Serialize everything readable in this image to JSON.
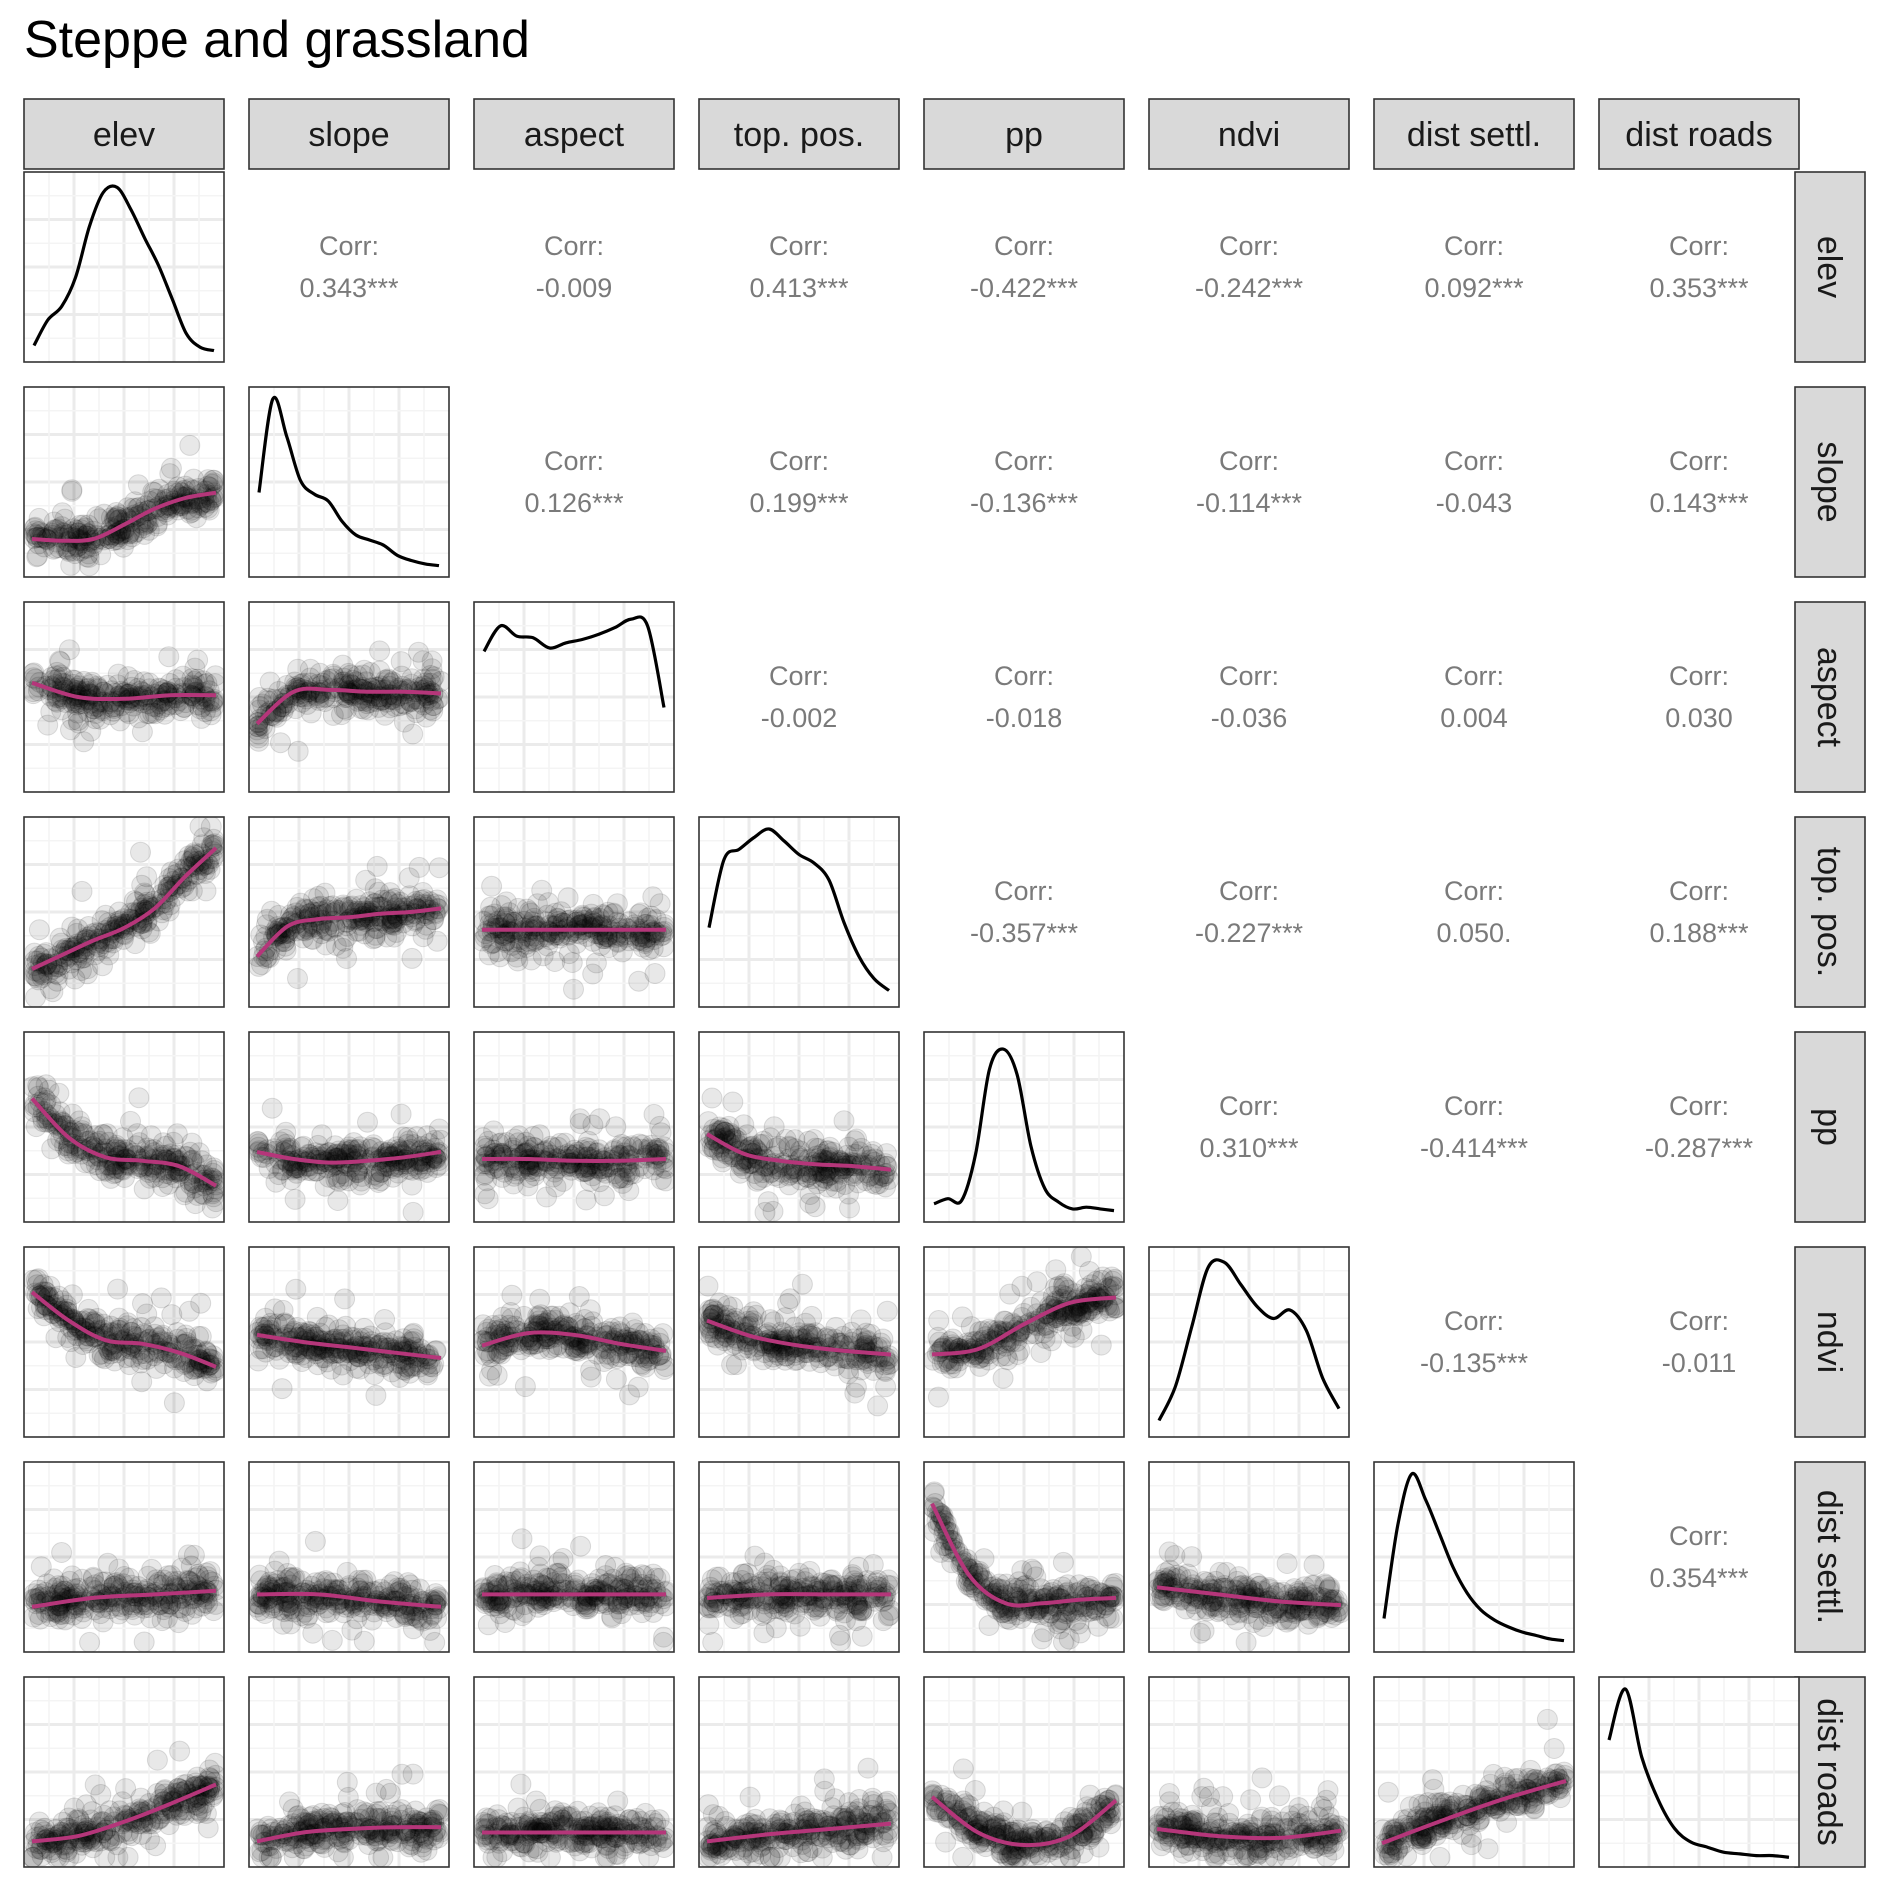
{
  "chart_data": {
    "type": "scatter",
    "title": "Steppe and grassland",
    "variables": [
      "elev",
      "slope",
      "aspect",
      "top. pos.",
      "pp",
      "ndvi",
      "dist settl.",
      "dist roads"
    ],
    "corr_prefix": "Corr:",
    "correlations": [
      {
        "row": "elev",
        "col": "slope",
        "value": "0.343***"
      },
      {
        "row": "elev",
        "col": "aspect",
        "value": "-0.009"
      },
      {
        "row": "elev",
        "col": "top. pos.",
        "value": "0.413***"
      },
      {
        "row": "elev",
        "col": "pp",
        "value": "-0.422***"
      },
      {
        "row": "elev",
        "col": "ndvi",
        "value": "-0.242***"
      },
      {
        "row": "elev",
        "col": "dist settl.",
        "value": "0.092***"
      },
      {
        "row": "elev",
        "col": "dist roads",
        "value": "0.353***"
      },
      {
        "row": "slope",
        "col": "aspect",
        "value": "0.126***"
      },
      {
        "row": "slope",
        "col": "top. pos.",
        "value": "0.199***"
      },
      {
        "row": "slope",
        "col": "pp",
        "value": "-0.136***"
      },
      {
        "row": "slope",
        "col": "ndvi",
        "value": "-0.114***"
      },
      {
        "row": "slope",
        "col": "dist settl.",
        "value": "-0.043"
      },
      {
        "row": "slope",
        "col": "dist roads",
        "value": "0.143***"
      },
      {
        "row": "aspect",
        "col": "top. pos.",
        "value": "-0.002"
      },
      {
        "row": "aspect",
        "col": "pp",
        "value": "-0.018"
      },
      {
        "row": "aspect",
        "col": "ndvi",
        "value": "-0.036"
      },
      {
        "row": "aspect",
        "col": "dist settl.",
        "value": "0.004"
      },
      {
        "row": "aspect",
        "col": "dist roads",
        "value": "0.030"
      },
      {
        "row": "top. pos.",
        "col": "pp",
        "value": "-0.357***"
      },
      {
        "row": "top. pos.",
        "col": "ndvi",
        "value": "-0.227***"
      },
      {
        "row": "top. pos.",
        "col": "dist settl.",
        "value": "0.050."
      },
      {
        "row": "top. pos.",
        "col": "dist roads",
        "value": "0.188***"
      },
      {
        "row": "pp",
        "col": "ndvi",
        "value": "0.310***"
      },
      {
        "row": "pp",
        "col": "dist settl.",
        "value": "-0.414***"
      },
      {
        "row": "pp",
        "col": "dist roads",
        "value": "-0.287***"
      },
      {
        "row": "ndvi",
        "col": "dist settl.",
        "value": "-0.135***"
      },
      {
        "row": "ndvi",
        "col": "dist roads",
        "value": "-0.011"
      },
      {
        "row": "dist settl.",
        "col": "dist roads",
        "value": "0.354***"
      }
    ],
    "density_curves": {
      "elev": [
        0.05,
        0.2,
        0.28,
        0.45,
        0.75,
        0.95,
        0.98,
        0.85,
        0.68,
        0.52,
        0.32,
        0.12,
        0.04,
        0.02
      ],
      "slope": [
        0.45,
        1.0,
        0.78,
        0.52,
        0.44,
        0.4,
        0.28,
        0.2,
        0.17,
        0.14,
        0.08,
        0.05,
        0.03,
        0.02
      ],
      "aspect": [
        0.78,
        0.93,
        0.87,
        0.86,
        0.8,
        0.83,
        0.85,
        0.88,
        0.92,
        0.97,
        0.93,
        0.45
      ],
      "top. pos.": [
        0.42,
        0.82,
        0.88,
        0.95,
        1.0,
        0.93,
        0.85,
        0.8,
        0.7,
        0.45,
        0.25,
        0.12,
        0.05
      ],
      "pp": [
        0.06,
        0.09,
        0.08,
        0.35,
        0.85,
        0.97,
        0.82,
        0.4,
        0.15,
        0.07,
        0.03,
        0.04,
        0.03,
        0.02
      ],
      "ndvi": [
        0.05,
        0.25,
        0.6,
        0.95,
        0.98,
        0.85,
        0.72,
        0.65,
        0.7,
        0.58,
        0.3,
        0.12
      ],
      "dist settl.": [
        0.15,
        0.7,
        1.0,
        0.85,
        0.65,
        0.45,
        0.3,
        0.2,
        0.14,
        0.1,
        0.07,
        0.05,
        0.03,
        0.02
      ],
      "dist roads": [
        0.7,
        1.0,
        0.6,
        0.35,
        0.18,
        0.1,
        0.07,
        0.04,
        0.03,
        0.02,
        0.02,
        0.01
      ]
    },
    "smooth_lines": [
      {
        "row": "slope",
        "col": "elev",
        "y": [
          0.18,
          0.17,
          0.18,
          0.26,
          0.35,
          0.41,
          0.44
        ]
      },
      {
        "row": "aspect",
        "col": "elev",
        "y": [
          0.58,
          0.5,
          0.49,
          0.51,
          0.51
        ]
      },
      {
        "row": "aspect",
        "col": "slope",
        "y": [
          0.35,
          0.53,
          0.54,
          0.53,
          0.53,
          0.52
        ]
      },
      {
        "row": "top. pos.",
        "col": "elev",
        "y": [
          0.18,
          0.26,
          0.34,
          0.41,
          0.52,
          0.7,
          0.86
        ]
      },
      {
        "row": "top. pos.",
        "col": "slope",
        "y": [
          0.25,
          0.42,
          0.46,
          0.47,
          0.49,
          0.5,
          0.52
        ]
      },
      {
        "row": "top. pos.",
        "col": "aspect",
        "y": [
          0.4,
          0.4,
          0.4,
          0.4,
          0.4
        ]
      },
      {
        "row": "pp",
        "col": "elev",
        "y": [
          0.66,
          0.44,
          0.33,
          0.31,
          0.28,
          0.17
        ]
      },
      {
        "row": "pp",
        "col": "slope",
        "y": [
          0.36,
          0.32,
          0.3,
          0.31,
          0.33,
          0.36
        ]
      },
      {
        "row": "pp",
        "col": "aspect",
        "y": [
          0.32,
          0.32,
          0.31,
          0.31,
          0.32
        ]
      },
      {
        "row": "pp",
        "col": "top. pos.",
        "y": [
          0.46,
          0.35,
          0.31,
          0.29,
          0.28,
          0.26
        ]
      },
      {
        "row": "ndvi",
        "col": "elev",
        "y": [
          0.78,
          0.62,
          0.51,
          0.49,
          0.44,
          0.36
        ]
      },
      {
        "row": "ndvi",
        "col": "slope",
        "y": [
          0.54,
          0.5,
          0.47,
          0.44,
          0.41
        ]
      },
      {
        "row": "ndvi",
        "col": "aspect",
        "y": [
          0.48,
          0.55,
          0.54,
          0.49,
          0.45
        ]
      },
      {
        "row": "ndvi",
        "col": "top. pos.",
        "y": [
          0.62,
          0.53,
          0.48,
          0.45,
          0.43
        ]
      },
      {
        "row": "ndvi",
        "col": "pp",
        "y": [
          0.43,
          0.46,
          0.6,
          0.72,
          0.75
        ]
      },
      {
        "row": "dist settl.",
        "col": "elev",
        "y": [
          0.22,
          0.27,
          0.29,
          0.31
        ]
      },
      {
        "row": "dist settl.",
        "col": "slope",
        "y": [
          0.29,
          0.29,
          0.25,
          0.22
        ]
      },
      {
        "row": "dist settl.",
        "col": "aspect",
        "y": [
          0.29,
          0.29,
          0.29,
          0.29
        ]
      },
      {
        "row": "dist settl.",
        "col": "top. pos.",
        "y": [
          0.27,
          0.29,
          0.29,
          0.29
        ]
      },
      {
        "row": "dist settl.",
        "col": "pp",
        "y": [
          0.8,
          0.4,
          0.24,
          0.24,
          0.26,
          0.27
        ]
      },
      {
        "row": "dist settl.",
        "col": "ndvi",
        "y": [
          0.33,
          0.29,
          0.25,
          0.23
        ]
      },
      {
        "row": "dist roads",
        "col": "elev",
        "y": [
          0.11,
          0.14,
          0.22,
          0.32,
          0.43
        ]
      },
      {
        "row": "dist roads",
        "col": "slope",
        "y": [
          0.11,
          0.16,
          0.18,
          0.19,
          0.19
        ]
      },
      {
        "row": "dist roads",
        "col": "aspect",
        "y": [
          0.16,
          0.16,
          0.16,
          0.16
        ]
      },
      {
        "row": "dist roads",
        "col": "top. pos.",
        "y": [
          0.11,
          0.15,
          0.18,
          0.21
        ]
      },
      {
        "row": "dist roads",
        "col": "pp",
        "y": [
          0.36,
          0.16,
          0.09,
          0.14,
          0.34
        ]
      },
      {
        "row": "dist roads",
        "col": "ndvi",
        "y": [
          0.18,
          0.14,
          0.13,
          0.17
        ]
      },
      {
        "row": "dist roads",
        "col": "dist settl.",
        "y": [
          0.1,
          0.23,
          0.35,
          0.45
        ]
      }
    ],
    "grid": true,
    "colors": {
      "smooth": "#b5367a",
      "density": "#000000",
      "points": "#000000",
      "strip_fill": "#d9d9d9",
      "corr_text": "#7a7a7a",
      "grid": "#ebebeb"
    }
  }
}
